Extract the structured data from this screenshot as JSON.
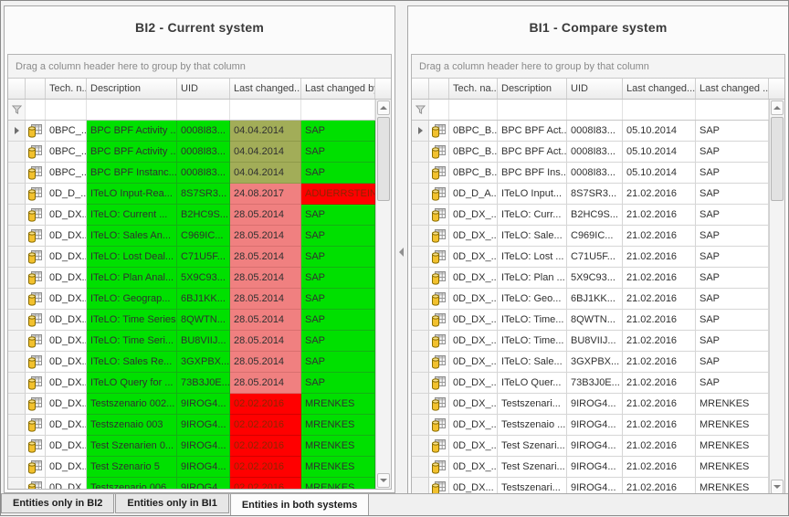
{
  "colors": {
    "match_green": "#00e000",
    "diff_olive": "#a2ad58",
    "diff_salmon": "#f08080",
    "diff_red": "#ff0000",
    "red_cell_text": "#8c2500"
  },
  "panels": [
    {
      "id": "bi2",
      "title": "BI2 -  Current system",
      "group_by_hint": "Drag a column header here to group by that column",
      "columns": [
        "Tech. n...",
        "Description",
        "UID",
        "Last changed...",
        "Last changed by"
      ],
      "rows": [
        {
          "tech": "0BPC_...",
          "desc": "BPC BPF Activity ...",
          "uid": "0008I83...",
          "date": "04.04.2014",
          "by": "SAP",
          "base_bg": "green",
          "date_bg": "olive",
          "by_bg": "green",
          "focused": true
        },
        {
          "tech": "0BPC_...",
          "desc": "BPC BPF Activity ...",
          "uid": "0008I83...",
          "date": "04.04.2014",
          "by": "SAP",
          "base_bg": "green",
          "date_bg": "olive",
          "by_bg": "green"
        },
        {
          "tech": "0BPC_...",
          "desc": "BPC BPF Instanc...",
          "uid": "0008I83...",
          "date": "04.04.2014",
          "by": "SAP",
          "base_bg": "green",
          "date_bg": "olive",
          "by_bg": "green"
        },
        {
          "tech": "0D_D_...",
          "desc": "ITeLO Input-Rea...",
          "uid": "8S7SR3...",
          "date": "24.08.2017",
          "by": "ADUERRSTEIN",
          "base_bg": "green",
          "date_bg": "salmon",
          "by_bg": "red"
        },
        {
          "tech": "0D_DX...",
          "desc": "ITeLO: Current ...",
          "uid": "B2HC9S...",
          "date": "28.05.2014",
          "by": "SAP",
          "base_bg": "green",
          "date_bg": "salmon",
          "by_bg": "green"
        },
        {
          "tech": "0D_DX...",
          "desc": "ITeLO: Sales An...",
          "uid": "C969IC...",
          "date": "28.05.2014",
          "by": "SAP",
          "base_bg": "green",
          "date_bg": "salmon",
          "by_bg": "green"
        },
        {
          "tech": "0D_DX...",
          "desc": "ITeLO: Lost Deal...",
          "uid": "C71U5F...",
          "date": "28.05.2014",
          "by": "SAP",
          "base_bg": "green",
          "date_bg": "salmon",
          "by_bg": "green"
        },
        {
          "tech": "0D_DX...",
          "desc": "ITeLO: Plan Anal...",
          "uid": "5X9C93...",
          "date": "28.05.2014",
          "by": "SAP",
          "base_bg": "green",
          "date_bg": "salmon",
          "by_bg": "green"
        },
        {
          "tech": "0D_DX...",
          "desc": "ITeLO: Geograp...",
          "uid": "6BJ1KK...",
          "date": "28.05.2014",
          "by": "SAP",
          "base_bg": "green",
          "date_bg": "salmon",
          "by_bg": "green"
        },
        {
          "tech": "0D_DX...",
          "desc": "ITeLO: Time Series",
          "uid": "8QWTN...",
          "date": "28.05.2014",
          "by": "SAP",
          "base_bg": "green",
          "date_bg": "salmon",
          "by_bg": "green"
        },
        {
          "tech": "0D_DX...",
          "desc": "ITeLO: Time Seri...",
          "uid": "BU8VIIJ...",
          "date": "28.05.2014",
          "by": "SAP",
          "base_bg": "green",
          "date_bg": "salmon",
          "by_bg": "green"
        },
        {
          "tech": "0D_DX...",
          "desc": "ITeLO: Sales Re...",
          "uid": "3GXPBX...",
          "date": "28.05.2014",
          "by": "SAP",
          "base_bg": "green",
          "date_bg": "salmon",
          "by_bg": "green"
        },
        {
          "tech": "0D_DX...",
          "desc": "ITeLO Query for ...",
          "uid": "73B3J0E...",
          "date": "28.05.2014",
          "by": "SAP",
          "base_bg": "green",
          "date_bg": "salmon",
          "by_bg": "green"
        },
        {
          "tech": "0D_DX...",
          "desc": "Testszenario 002...",
          "uid": "9IROG4...",
          "date": "02.02.2016",
          "by": "MRENKES",
          "base_bg": "green",
          "date_bg": "red",
          "by_bg": "green"
        },
        {
          "tech": "0D_DX...",
          "desc": "Testszenaio 003",
          "uid": "9IROG4...",
          "date": "02.02.2016",
          "by": "MRENKES",
          "base_bg": "green",
          "date_bg": "red",
          "by_bg": "green"
        },
        {
          "tech": "0D_DX...",
          "desc": "Test Szenarien 0...",
          "uid": "9IROG4...",
          "date": "02.02.2016",
          "by": "MRENKES",
          "base_bg": "green",
          "date_bg": "red",
          "by_bg": "green"
        },
        {
          "tech": "0D_DX...",
          "desc": "Test Szenario 5",
          "uid": "9IROG4...",
          "date": "02.02.2016",
          "by": "MRENKES",
          "base_bg": "green",
          "date_bg": "red",
          "by_bg": "green"
        },
        {
          "tech": "0D_DX...",
          "desc": "Testszenario 006",
          "uid": "9IROG4...",
          "date": "02.02.2016",
          "by": "MRENKES",
          "base_bg": "green",
          "date_bg": "red",
          "by_bg": "green"
        }
      ]
    },
    {
      "id": "bi1",
      "title": "BI1 -  Compare system",
      "group_by_hint": "Drag a column header here to group by that column",
      "columns": [
        "Tech. na...",
        "Description",
        "UID",
        "Last changed...",
        "Last changed ..."
      ],
      "rows": [
        {
          "tech": "0BPC_B...",
          "desc": "BPC BPF Act...",
          "uid": "0008I83...",
          "date": "05.10.2014",
          "by": "SAP",
          "focused": true
        },
        {
          "tech": "0BPC_B...",
          "desc": "BPC BPF Act...",
          "uid": "0008I83...",
          "date": "05.10.2014",
          "by": "SAP"
        },
        {
          "tech": "0BPC_B...",
          "desc": "BPC BPF Ins...",
          "uid": "0008I83...",
          "date": "05.10.2014",
          "by": "SAP"
        },
        {
          "tech": "0D_D_A...",
          "desc": "ITeLO Input...",
          "uid": "8S7SR3...",
          "date": "21.02.2016",
          "by": "SAP"
        },
        {
          "tech": "0D_DX_...",
          "desc": "ITeLO: Curr...",
          "uid": "B2HC9S...",
          "date": "21.02.2016",
          "by": "SAP"
        },
        {
          "tech": "0D_DX_...",
          "desc": "ITeLO: Sale...",
          "uid": "C969IC...",
          "date": "21.02.2016",
          "by": "SAP"
        },
        {
          "tech": "0D_DX_...",
          "desc": "ITeLO: Lost ...",
          "uid": "C71U5F...",
          "date": "21.02.2016",
          "by": "SAP"
        },
        {
          "tech": "0D_DX_...",
          "desc": "ITeLO: Plan ...",
          "uid": "5X9C93...",
          "date": "21.02.2016",
          "by": "SAP"
        },
        {
          "tech": "0D_DX_...",
          "desc": "ITeLO: Geo...",
          "uid": "6BJ1KK...",
          "date": "21.02.2016",
          "by": "SAP"
        },
        {
          "tech": "0D_DX_...",
          "desc": "ITeLO: Time...",
          "uid": "8QWTN...",
          "date": "21.02.2016",
          "by": "SAP"
        },
        {
          "tech": "0D_DX_...",
          "desc": "ITeLO: Time...",
          "uid": "BU8VIIJ...",
          "date": "21.02.2016",
          "by": "SAP"
        },
        {
          "tech": "0D_DX_...",
          "desc": "ITeLO: Sale...",
          "uid": "3GXPBX...",
          "date": "21.02.2016",
          "by": "SAP"
        },
        {
          "tech": "0D_DX_...",
          "desc": "ITeLO Quer...",
          "uid": "73B3J0E...",
          "date": "21.02.2016",
          "by": "SAP"
        },
        {
          "tech": "0D_DX_...",
          "desc": "Testszenari...",
          "uid": "9IROG4...",
          "date": "21.02.2016",
          "by": "MRENKES"
        },
        {
          "tech": "0D_DX_...",
          "desc": "Testszenaio ...",
          "uid": "9IROG4...",
          "date": "21.02.2016",
          "by": "MRENKES"
        },
        {
          "tech": "0D_DX_...",
          "desc": "Test Szenari...",
          "uid": "9IROG4...",
          "date": "21.02.2016",
          "by": "MRENKES"
        },
        {
          "tech": "0D_DX_...",
          "desc": "Test Szenari...",
          "uid": "9IROG4...",
          "date": "21.02.2016",
          "by": "MRENKES"
        },
        {
          "tech": "0D_DX...",
          "desc": "Testszenari...",
          "uid": "9IROG4...",
          "date": "21.02.2016",
          "by": "MRENKES"
        }
      ]
    }
  ],
  "tabs": [
    {
      "label": "Entities only in BI2",
      "active": false
    },
    {
      "label": "Entities only in BI1",
      "active": false
    },
    {
      "label": "Entities in both systems",
      "active": true
    }
  ]
}
